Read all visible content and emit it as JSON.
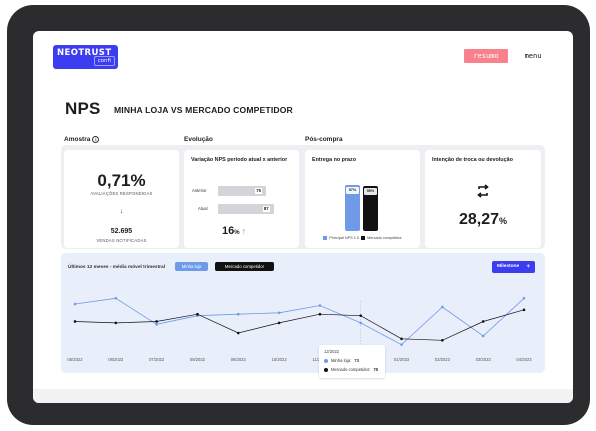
{
  "header": {
    "logo_main": "NEOTRUST",
    "logo_sub": "confi",
    "resumo_label": "resumo",
    "menu_label": "menu"
  },
  "page": {
    "title": "NPS",
    "subtitle": "MINHA LOJA VS MERCADO COMPETIDOR"
  },
  "sections": {
    "amostra": "Amostra",
    "evolucao": "Evolução",
    "poscompra": "Pós-compra",
    "info_icon": "i"
  },
  "amostra": {
    "value": "0,71%",
    "caption": "AVALIAÇÕES RESPONDIDAS",
    "arrow": "↓",
    "count": "52.695",
    "count_caption": "VENDAS NOTIFICADAS"
  },
  "evolucao": {
    "title": "Variação NPS período atual x anterior",
    "anterior_label": "Anterior",
    "anterior_value": 75,
    "atual_label": "Atual",
    "atual_value": 87,
    "change_value": "16",
    "change_unit": "%",
    "change_arrow": "↑"
  },
  "entrega": {
    "title": "Entrega no prazo",
    "bar_loja_value": "97%",
    "bar_loja_level": 0.97,
    "bar_mercado_value": "95%",
    "bar_mercado_level": 0.95,
    "legend_loja": "Principal NPS 1.0",
    "legend_mercado": "Mercado competidor"
  },
  "troca": {
    "title": "Intenção de troca ou devolução",
    "value": "28,27",
    "unit": "%",
    "icon": "swap-icon"
  },
  "trend": {
    "heading": "Últimos 12 meses - média móvel trimestral",
    "pill_loja": "Minha loja",
    "pill_mercado": "Mercado competidor",
    "milestone_label": "Milestone",
    "milestone_plus": "+",
    "tooltip": {
      "date": "12/2022",
      "loja_label": "Minha loja:",
      "loja_value": "73",
      "mercado_label": "Mercado competidor:",
      "mercado_value": "78"
    }
  },
  "colors": {
    "accent": "#3d3df0",
    "loja": "#6f9ae8",
    "mercado": "#111111",
    "resumo": "#f8828c",
    "up": "#3dbb7a"
  },
  "chart_data": {
    "type": "line",
    "x": [
      "05/2022",
      "06/2022",
      "07/2022",
      "08/2022",
      "09/2022",
      "10/2022",
      "11/2022",
      "12/2022",
      "01/2023",
      "02/2023",
      "03/2023",
      "04/2023"
    ],
    "series": [
      {
        "name": "Minha loja",
        "values": [
          86,
          90,
          72,
          78,
          79,
          80,
          85,
          73,
          58,
          84,
          64,
          90
        ]
      },
      {
        "name": "Mercado competidor",
        "values": [
          74,
          73,
          74,
          79,
          66,
          73,
          79,
          78,
          62,
          61,
          74,
          82
        ]
      }
    ],
    "ylim": [
      55,
      95
    ],
    "grid": false,
    "legend": "top-left"
  }
}
